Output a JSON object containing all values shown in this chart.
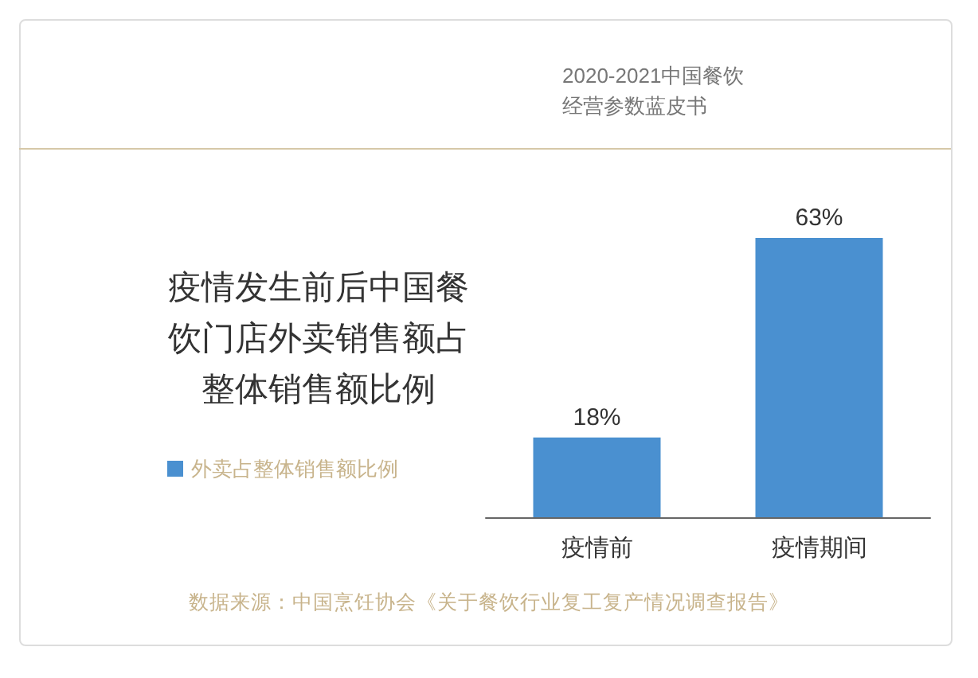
{
  "chart_data": {
    "type": "bar",
    "title": "疫情发生前后中国餐饮门店外卖销售额占整体销售额比例",
    "subtitle": "2020-2021中国餐饮经营参数蓝皮书",
    "categories": [
      "疫情前",
      "疫情期间"
    ],
    "series": [
      {
        "name": "外卖占整体销售额比例",
        "color": "#4a90d0",
        "values": [
          18,
          63
        ],
        "value_labels": [
          "18%",
          "63%"
        ]
      }
    ],
    "legend": "left",
    "annotations": [
      "数据来源：中国烹饪协会《关于餐饮行业复工复产情况调查报告》"
    ]
  }
}
